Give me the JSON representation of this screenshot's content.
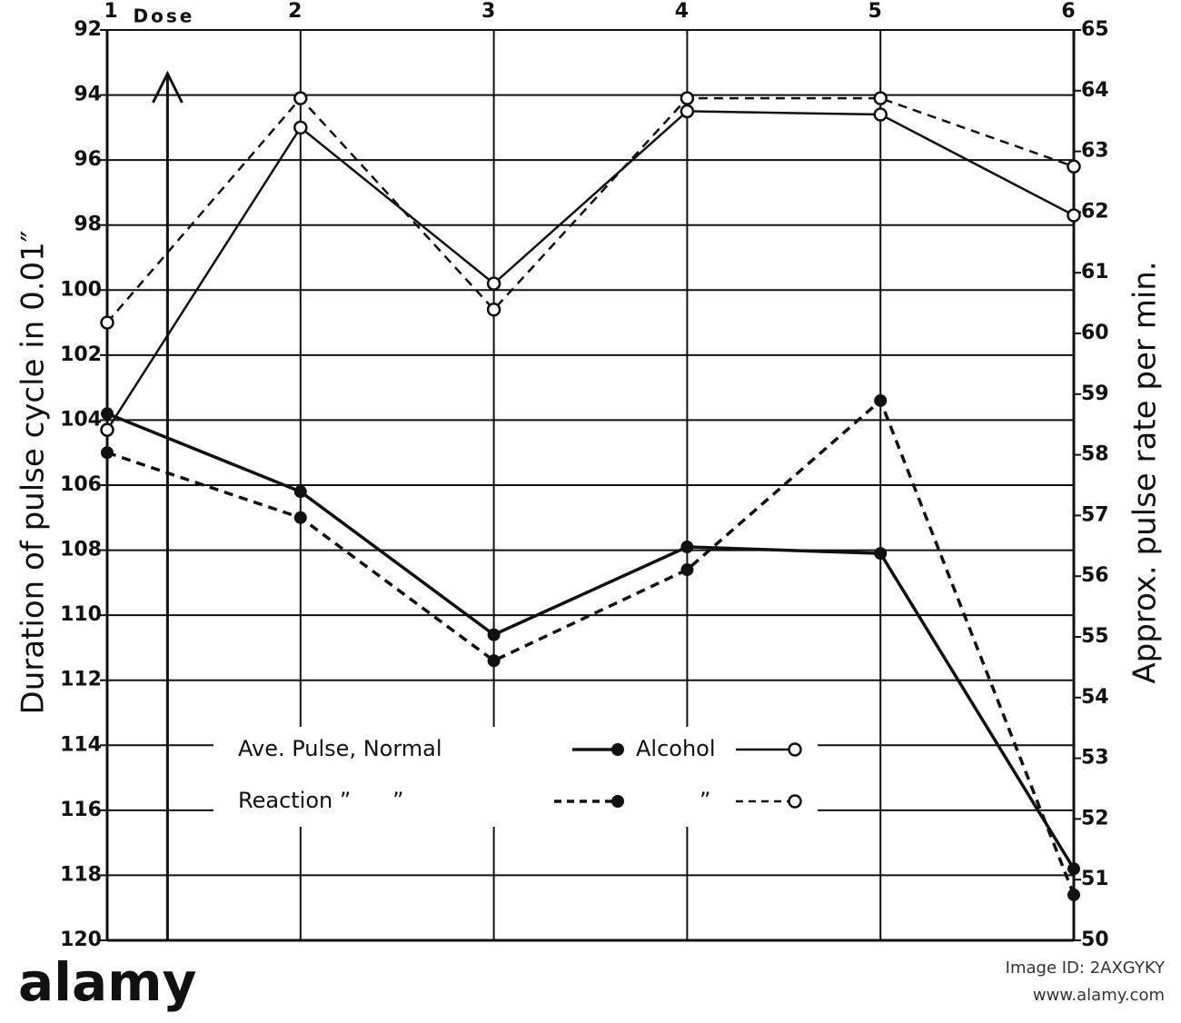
{
  "chart_data": {
    "type": "line",
    "x_ticks_position": "top",
    "y_label": "Duration of pulse cycle in 0.01″",
    "y2_label": "Approx. pulse rate per min.",
    "x": [
      1,
      2,
      3,
      4,
      5,
      6
    ],
    "xlim": [
      1,
      6
    ],
    "xticks": [
      1,
      2,
      3,
      4,
      5,
      6
    ],
    "ylim": [
      120,
      92
    ],
    "yticks": [
      92,
      94,
      96,
      98,
      100,
      102,
      104,
      106,
      108,
      110,
      112,
      114,
      116,
      118,
      120
    ],
    "y2lim": [
      50,
      65
    ],
    "y2ticks": [
      50,
      51,
      52,
      53,
      54,
      55,
      56,
      57,
      58,
      59,
      60,
      61,
      62,
      63,
      64,
      65
    ],
    "grid": true,
    "legend": "lower-left",
    "annotations": [
      {
        "text": "Dose",
        "x": 1.5
      }
    ],
    "series": [
      {
        "name": "Ave. Pulse, Normal",
        "color": "#111111",
        "style": "solid",
        "marker": "filled",
        "values": [
          103.8,
          106.2,
          110.6,
          107.9,
          108.1,
          117.8
        ]
      },
      {
        "name": "Alcohol",
        "color": "#111111",
        "style": "solid",
        "marker": "open",
        "values": [
          104.3,
          95.0,
          99.8,
          94.5,
          94.6,
          97.7
        ]
      },
      {
        "name": "Reaction ”      ”",
        "color": "#111111",
        "style": "dashed",
        "marker": "filled",
        "values": [
          105.0,
          107.0,
          111.4,
          108.6,
          103.4,
          118.6
        ]
      },
      {
        "name": "”",
        "color": "#111111",
        "style": "dashed",
        "marker": "open",
        "values": [
          101.0,
          94.1,
          100.6,
          94.1,
          94.1,
          96.2
        ]
      }
    ]
  },
  "footer": {
    "brand": "alamy",
    "image_id": "Image ID: 2AXGYKY",
    "url": "www.alamy.com"
  }
}
